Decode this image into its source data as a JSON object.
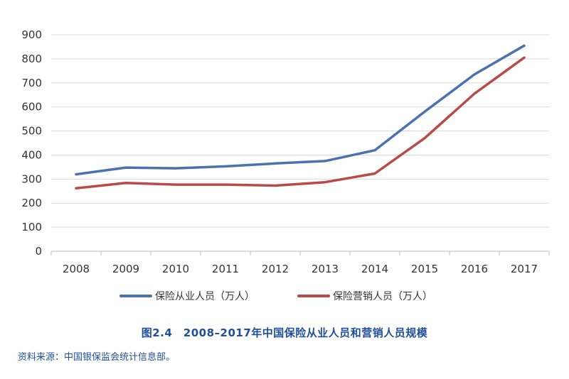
{
  "chart_data": {
    "type": "line",
    "categories": [
      "2008",
      "2009",
      "2010",
      "2011",
      "2012",
      "2013",
      "2014",
      "2015",
      "2016",
      "2017"
    ],
    "series": [
      {
        "name": "保险从业人员（万人）",
        "color": "#4a72b0",
        "values": [
          320,
          348,
          345,
          353,
          365,
          375,
          420,
          580,
          735,
          855
        ]
      },
      {
        "name": "保险营销人员（万人）",
        "color": "#b94a48",
        "values": [
          262,
          284,
          277,
          277,
          273,
          287,
          323,
          470,
          655,
          805
        ]
      }
    ],
    "ylim": [
      0,
      900
    ],
    "yticks": [
      0,
      100,
      200,
      300,
      400,
      500,
      600,
      700,
      800,
      900
    ],
    "grid": true,
    "legend_position": "bottom",
    "title": "图2.4　2008–2017年中国保险从业人员和营销人员规模"
  },
  "caption": "图2.4　2008–2017年中国保险从业人员和营销人员规模",
  "source": "资料来源：中国银保监会统计信息部。"
}
